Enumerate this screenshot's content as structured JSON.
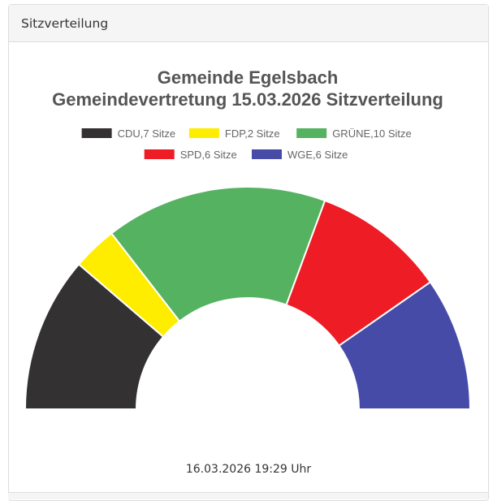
{
  "panel": {
    "title": "Sitzverteilung"
  },
  "footer": {
    "timestamp": "16.03.2026 19:29 Uhr"
  },
  "chart_data": {
    "type": "pie",
    "variant": "semicircle-donut",
    "title_lines": [
      "Gemeinde Egelsbach",
      "Gemeindevertretung 15.03.2026 Sitzverteilung"
    ],
    "legend_position": "top",
    "series": [
      {
        "name": "CDU",
        "value": 7,
        "label": "CDU,7 Sitze",
        "color": "#333132"
      },
      {
        "name": "FDP",
        "value": 2,
        "label": "FDP,2 Sitze",
        "color": "#ffed00"
      },
      {
        "name": "GRÜNE",
        "value": 10,
        "label": "GRÜNE,10 Sitze",
        "color": "#55b261"
      },
      {
        "name": "SPD",
        "value": 6,
        "label": "SPD,6 Sitze",
        "color": "#ee1c25"
      },
      {
        "name": "WGE",
        "value": 6,
        "label": "WGE,6 Sitze",
        "color": "#464ba8"
      }
    ]
  }
}
